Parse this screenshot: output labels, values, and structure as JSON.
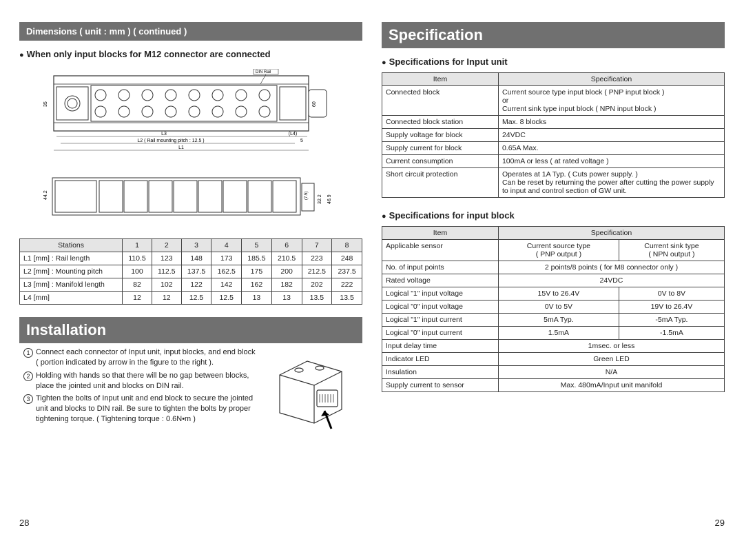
{
  "left": {
    "band_title": "Dimensions ( unit : mm ) ( continued )",
    "subhead": "When only input blocks for M12 connector are connected",
    "diagram_labels": {
      "din_rail": "DIN Rail",
      "left_dim": "35",
      "right_dim": "60",
      "l3": "L3",
      "l4_p": "(L4)",
      "l2_note": "L2 ( Rail mounting pitch : 12.5 )",
      "five": "5",
      "l1": "L1",
      "side_44": "44.2",
      "side_75": "(7.5)",
      "side_322": "32.2",
      "side_469": "46.9"
    },
    "dim_table": {
      "head": [
        "Stations",
        "1",
        "2",
        "3",
        "4",
        "5",
        "6",
        "7",
        "8"
      ],
      "rows": [
        [
          "L1 [mm] : Rail length",
          "110.5",
          "123",
          "148",
          "173",
          "185.5",
          "210.5",
          "223",
          "248"
        ],
        [
          "L2 [mm] : Mounting pitch",
          "100",
          "112.5",
          "137.5",
          "162.5",
          "175",
          "200",
          "212.5",
          "237.5"
        ],
        [
          "L3 [mm] : Manifold length",
          "82",
          "102",
          "122",
          "142",
          "162",
          "182",
          "202",
          "222"
        ],
        [
          "L4 [mm]",
          "12",
          "12",
          "12.5",
          "12.5",
          "13",
          "13",
          "13.5",
          "13.5"
        ]
      ]
    },
    "install_title": "Installation",
    "install_steps": [
      "Connect each connector of Input unit, input blocks, and end block ( portion indicated by arrow in the figure to the right ).",
      "Holding with hands so that there will be no gap between blocks, place the jointed unit and blocks on DIN rail.",
      "Tighten the bolts of Input unit and end block to secure the jointed unit and blocks to DIN rail. Be sure to tighten the bolts by proper tightening torque. ( Tightening torque : 0.6N•m )"
    ],
    "page": "28"
  },
  "right": {
    "band_title": "Specification",
    "sub1": "Specifications for Input unit",
    "table1": {
      "head": [
        "Item",
        "Specification"
      ],
      "rows": [
        [
          "Connected block",
          "Current source type input block ( PNP input block )\nor\nCurrent sink type input block ( NPN input block )"
        ],
        [
          "Connected block station",
          "Max. 8 blocks"
        ],
        [
          "Supply voltage for block",
          "24VDC"
        ],
        [
          "Supply current for block",
          "0.65A Max."
        ],
        [
          "Current consumption",
          "100mA or less ( at rated voltage )"
        ],
        [
          "Short circuit protection",
          "Operates at 1A Typ. ( Cuts power supply. )\nCan be reset by returning the power after cutting the power supply to input and control section of GW unit."
        ]
      ]
    },
    "sub2": "Specifications for input block",
    "table2": {
      "head": [
        "Item",
        "Specification"
      ],
      "rows": [
        {
          "label": "Applicable sensor",
          "a": "Current source type\n( PNP output )",
          "b": "Current sink type\n( NPN output )"
        },
        {
          "label": "No. of input points",
          "span": "2 points/8 points ( for M8 connector only )"
        },
        {
          "label": "Rated voltage",
          "span": "24VDC"
        },
        {
          "label": "Logical \"1\" input voltage",
          "a": "15V to 26.4V",
          "b": "0V to 8V"
        },
        {
          "label": "Logical \"0\" input voltage",
          "a": "0V to 5V",
          "b": "19V to 26.4V"
        },
        {
          "label": "Logical \"1\" input current",
          "a": "5mA Typ.",
          "b": "-5mA Typ."
        },
        {
          "label": "Logical \"0\" input current",
          "a": "1.5mA",
          "b": "-1.5mA"
        },
        {
          "label": "Input delay time",
          "span": "1msec. or less"
        },
        {
          "label": "Indicator LED",
          "span": "Green LED"
        },
        {
          "label": "Insulation",
          "span": "N/A"
        },
        {
          "label": "Supply current to sensor",
          "span": "Max. 480mA/Input unit manifold"
        }
      ]
    },
    "page": "29"
  },
  "colors": {
    "band_bg": "#707070",
    "band_fg": "#ffffff",
    "th_bg": "#e5e5e5",
    "border": "#444444",
    "text": "#222222"
  }
}
